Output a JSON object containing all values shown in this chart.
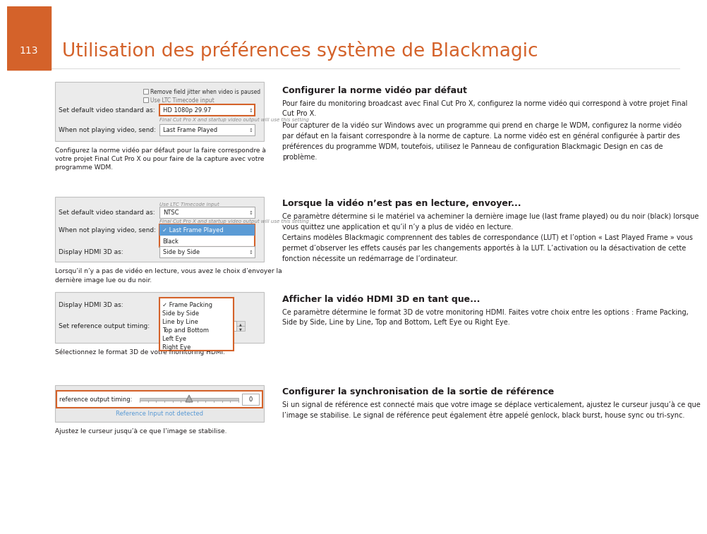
{
  "page_bg": "#ffffff",
  "orange_bar_color": "#d4622a",
  "page_number": "113",
  "title": "Utilisation des préférences système de Blackmagic",
  "title_color": "#d4622a",
  "page_number_color": "#ffffff",
  "section1_heading": "Configurer la norme vidéo par défaut",
  "section1_para1": "Pour faire du monitoring broadcast avec Final Cut Pro X, configurez la norme vidéo qui correspond à votre projet Final\nCut Pro X.",
  "section1_para2": "Pour capturer de la vidéo sur Windows avec un programme qui prend en charge le WDM, configurez la norme vidéo\npar défaut en la faisant correspondre à la norme de capture. La norme vidéo est en général configurée à partir des\npréférences du programme WDM, toutefois, utilisez le Panneau de configuration Blackmagic Design en cas de\nproblème.",
  "section1_caption": "Configurez la norme vidéo par défaut pour la faire correspondre à\nvotre projet Final Cut Pro X ou pour faire de la capture avec votre\nprogramme WDM.",
  "section2_heading": "Lorsque la vidéo n’est pas en lecture, envoyer...",
  "section2_para1": "Ce paramètre détermine si le matériel va acheminer la dernière image lue (last frame played) ou du noir (black) lorsque\nvous quittez une application et qu’il n’y a plus de vidéo en lecture.",
  "section2_para2": "Certains modèles Blackmagic comprennent des tables de correspondance (LUT) et l’option « Last Played Frame » vous\npermet d’observer les effets causés par les changements apportés à la LUT. L’activation ou la désactivation de cette\nfonction nécessite un redémarrage de l’ordinateur.",
  "section2_caption": "Lorsqu’il n’y a pas de vidéo en lecture, vous avez le choix d’envoyer la\ndernière image lue ou du noir.",
  "section3_heading": "Afficher la vidéo HDMI 3D en tant que...",
  "section3_para1": "Ce paramètre détermine le format 3D de votre monitoring HDMI. Faites votre choix entre les options : Frame Packing,\nSide by Side, Line by Line, Top and Bottom, Left Eye ou Right Eye.",
  "section3_caption": "Sélectionnez le format 3D de votre monitoring HDMI.",
  "section4_heading": "Configurer la synchronisation de la sortie de référence",
  "section4_para1": "Si un signal de référence est connecté mais que votre image se déplace verticalement, ajustez le curseur jusqu’à ce que\nl’image se stabilise. Le signal de référence peut également être appelé genlock, black burst, house sync ou tri-sync.",
  "section4_caption": "Ajustez le curseur jusqu’à ce que l’image se stabilise.",
  "heading_color": "#231f20",
  "body_color": "#231f20",
  "caption_color": "#231f20",
  "orange_ui": "#d4622a",
  "blue_selected": "#5b9bd5"
}
